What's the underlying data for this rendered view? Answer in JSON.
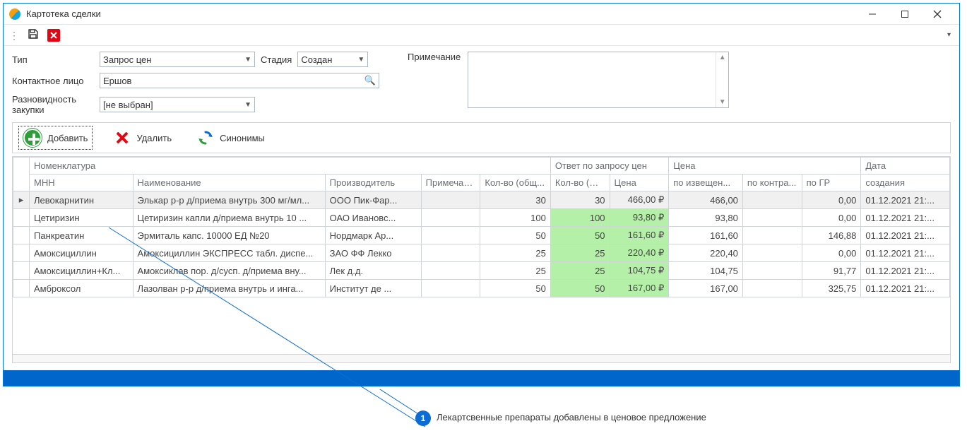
{
  "window": {
    "title": "Картотека сделки"
  },
  "toolbar": {
    "save_label": "",
    "delete_label": ""
  },
  "form": {
    "type_label": "Тип",
    "type_value": "Запрос цен",
    "stage_label": "Стадия",
    "stage_value": "Создан",
    "contact_label": "Контактное лицо",
    "contact_value": "Ершов",
    "variety_label": "Разновидность закупки",
    "variety_value": "[не выбран]",
    "note_label": "Примечание"
  },
  "actions": {
    "add": "Добавить",
    "delete": "Удалить",
    "synonyms": "Синонимы"
  },
  "grid": {
    "group_nomenclature": "Номенклатура",
    "group_answer": "Ответ по запросу цен",
    "group_price": "Цена",
    "group_date": "Дата",
    "col_mnn": "МНН",
    "col_name": "Наименование",
    "col_producer": "Производитель",
    "col_note": "Примечание",
    "col_qty_total": "Кол-во (общ...",
    "col_qty_actual": "Кол-во (фак...",
    "col_price": "Цена",
    "col_by_notice": "по извещен...",
    "col_by_contract": "по контра...",
    "col_by_gr": "по ГР",
    "col_created": "создания",
    "rows": [
      {
        "mnn": "Левокарнитин",
        "name": "Элькар р-р д/приема внутрь 300 мг/мл...",
        "prod": "ООО Пик-Фар...",
        "note": "",
        "qt": "30",
        "qa": "30",
        "price": "466,00 ₽",
        "izv": "466,00",
        "kontr": "",
        "gr": "0,00",
        "date": "01.12.2021 21:...",
        "hl": false,
        "sel": true
      },
      {
        "mnn": "Цетиризин",
        "name": "Цетиризин капли д/приема внутрь 10 ...",
        "prod": "ОАО Ивановс...",
        "note": "",
        "qt": "100",
        "qa": "100",
        "price": "93,80 ₽",
        "izv": "93,80",
        "kontr": "",
        "gr": "0,00",
        "date": "01.12.2021 21:...",
        "hl": true,
        "sel": false
      },
      {
        "mnn": "Панкреатин",
        "name": "Эрмиталь капс. 10000 ЕД №20",
        "prod": "Нордмарк Ар...",
        "note": "",
        "qt": "50",
        "qa": "50",
        "price": "161,60 ₽",
        "izv": "161,60",
        "kontr": "",
        "gr": "146,88",
        "date": "01.12.2021 21:...",
        "hl": true,
        "sel": false
      },
      {
        "mnn": "Амоксициллин",
        "name": "Амоксициллин ЭКСПРЕСС табл. диспе...",
        "prod": "ЗАО ФФ Лекко",
        "note": "",
        "qt": "25",
        "qa": "25",
        "price": "220,40 ₽",
        "izv": "220,40",
        "kontr": "",
        "gr": "0,00",
        "date": "01.12.2021 21:...",
        "hl": true,
        "sel": false
      },
      {
        "mnn": "Амоксициллин+Кл...",
        "name": "Амоксиклав пор. д/сусп. д/приема вну...",
        "prod": "Лек д.д.",
        "note": "",
        "qt": "25",
        "qa": "25",
        "price": "104,75 ₽",
        "izv": "104,75",
        "kontr": "",
        "gr": "91,77",
        "date": "01.12.2021 21:...",
        "hl": true,
        "sel": false
      },
      {
        "mnn": "Амброксол",
        "name": "Лазолван р-р д/приема внутрь и инга...",
        "prod": "Институт де ...",
        "note": "",
        "qt": "50",
        "qa": "50",
        "price": "167,00 ₽",
        "izv": "167,00",
        "kontr": "",
        "gr": "325,75",
        "date": "01.12.2021 21:...",
        "hl": true,
        "sel": false
      }
    ]
  },
  "annotation": {
    "badge": "1",
    "text": "Лекартсвенные препараты добавлены в ценовое предложение"
  },
  "colors": {
    "border": "#0078d7",
    "highlight": "#b4f0a7",
    "status": "#0066cc",
    "annot": "#0b6dd4"
  }
}
